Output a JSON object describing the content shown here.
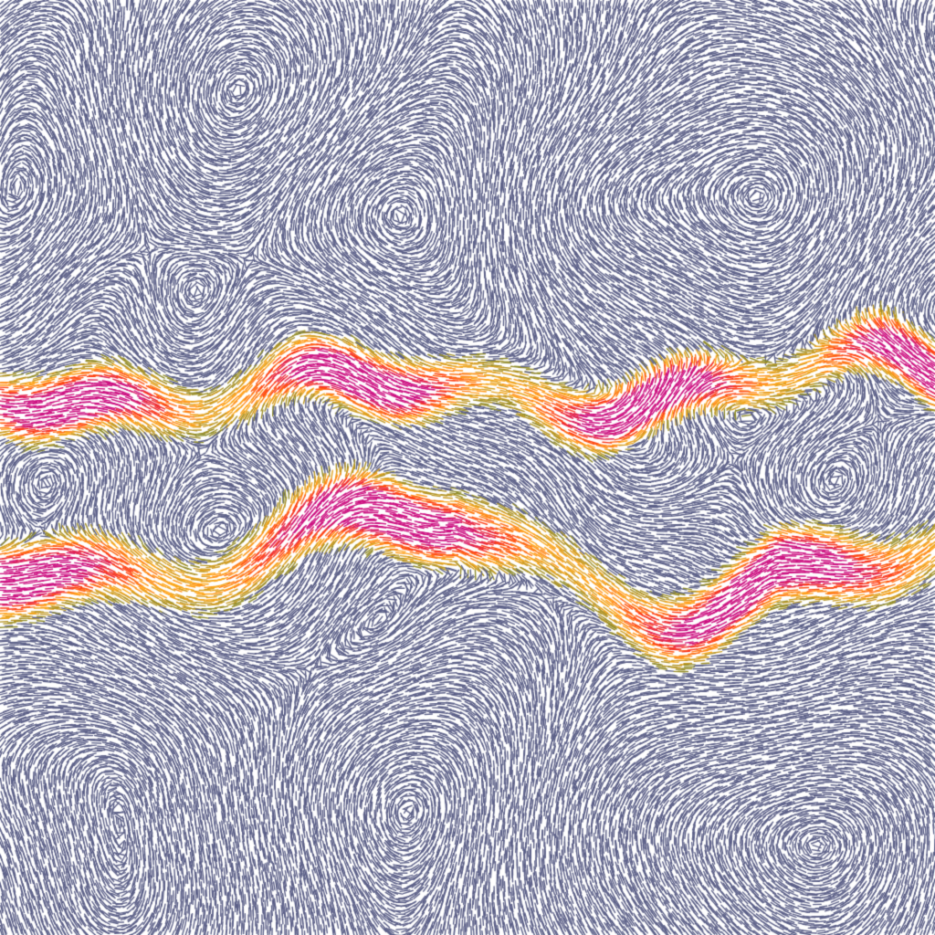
{
  "visualization": {
    "kind": "flow-field-streamlets",
    "background": "#ffffff",
    "colormap": [
      "#5c6088",
      "#8a8a2a",
      "#ffa81a",
      "#ff3a10",
      "#cc1080"
    ],
    "jets": [
      {
        "role": "upper-jet",
        "color_peak": "#ff3a10"
      },
      {
        "role": "lower-jet",
        "color_peak": "#cc1080"
      }
    ]
  }
}
